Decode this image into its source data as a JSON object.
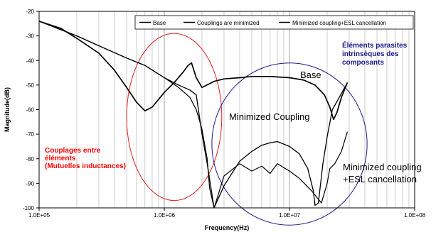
{
  "chart_data": {
    "type": "line",
    "x_scale": "log",
    "xlabel": "Frequency(Hz)",
    "ylabel": "Magnitude(dB)",
    "xlim": [
      100000,
      100000000
    ],
    "ylim": [
      -100,
      -20
    ],
    "x_ticks": [
      100000,
      1000000,
      10000000,
      100000000
    ],
    "x_tick_labels": [
      "1.0E+05",
      "1.0E+06",
      "1.0E+07",
      "1.0E+08"
    ],
    "y_ticks": [
      -100,
      -90,
      -80,
      -70,
      -60,
      -50,
      -40,
      -30,
      -20
    ],
    "y_tick_labels": [
      "-100",
      "-90",
      "-80",
      "-70",
      "-60",
      "-50",
      "-40",
      "-30",
      "-20"
    ],
    "grid": {
      "vertical_log_minor": true,
      "horizontal": false
    },
    "legend": {
      "placement": "top-right",
      "entries": [
        "Base",
        "Couplings are minimized",
        "Minimized coupling+ESL cancellation"
      ]
    },
    "series": [
      {
        "name": "Base",
        "color": "#000000",
        "x": [
          100000,
          150000,
          200000,
          300000,
          400000,
          500000,
          600000,
          700000,
          800000,
          1000000,
          1200000,
          1400000,
          1550000,
          1650000,
          1800000,
          2000000,
          2500000,
          3000000,
          4000000,
          5000000,
          7000000,
          10000000,
          13000000,
          16000000,
          19000000,
          21000000,
          22500000,
          24000000,
          26000000,
          29000000
        ],
        "y": [
          -24,
          -27,
          -31,
          -37,
          -44,
          -51,
          -57,
          -60.5,
          -59,
          -53,
          -49,
          -45,
          -42,
          -41,
          -47,
          -51,
          -48.5,
          -47.5,
          -47,
          -46.5,
          -46.5,
          -47,
          -48,
          -50,
          -54,
          -59,
          -64,
          -61,
          -55,
          -49
        ]
      },
      {
        "name": "Couplings are minimized",
        "color": "#000000",
        "x": [
          100000,
          200000,
          300000,
          500000,
          700000,
          1000000,
          1300000,
          1600000,
          1800000,
          2000000,
          2200000,
          2500000,
          3000000,
          4000000,
          5000000,
          6000000,
          7000000,
          8000000,
          10000000,
          12000000,
          14000000,
          15500000,
          16000000,
          17000000,
          18500000,
          20000000,
          22000000,
          25000000,
          29000000
        ],
        "y": [
          -24,
          -30,
          -34,
          -39,
          -42,
          -47,
          -50,
          -52,
          -54,
          -70,
          -82,
          -100,
          -91,
          -81,
          -77,
          -74.5,
          -73.5,
          -73,
          -75,
          -78,
          -84,
          -93,
          -99,
          -98,
          -82,
          -71,
          -60,
          -55,
          -49
        ]
      },
      {
        "name": "Minimized coupling+ESL cancellation",
        "color": "#000000",
        "x": [
          100000,
          200000,
          300000,
          500000,
          700000,
          1000000,
          1300000,
          1600000,
          1800000,
          2000000,
          2200000,
          2300000,
          2500000,
          3000000,
          4000000,
          5000000,
          6000000,
          7000000,
          8000000,
          10000000,
          12000000,
          15000000,
          18000000,
          20000000,
          21000000,
          23000000,
          26000000,
          29000000
        ],
        "y": [
          -24,
          -30,
          -34,
          -39,
          -42,
          -47,
          -51,
          -55,
          -60,
          -68,
          -80,
          -92,
          -100,
          -87,
          -82,
          -85,
          -83,
          -86,
          -82,
          -85,
          -88,
          -93,
          -98,
          -90,
          -84,
          -82,
          -77,
          -69
        ]
      }
    ],
    "annotations": [
      {
        "id": "base",
        "text": "Base",
        "color": "#000000"
      },
      {
        "id": "minimized",
        "text": "Minimized Coupling",
        "color": "#000000"
      },
      {
        "id": "esl",
        "lines": [
          "Minimized coupling",
          "+ESL cancellation"
        ],
        "color": "#000000"
      },
      {
        "id": "couplages",
        "lines": [
          "Couplages entre",
          "éléments",
          "(Mutuelles inductances)"
        ],
        "color": "#ff0000"
      },
      {
        "id": "elements",
        "lines": [
          "Éléments parasites",
          "intrinsèques des",
          "composants"
        ],
        "color": "#1a1a8c"
      }
    ],
    "highlight_ellipses": [
      {
        "color": "#e02020",
        "x_center": 1200000,
        "y_center": -63,
        "x_rx_decades": 0.38,
        "y_ry_db": 34
      },
      {
        "color": "#1a1a8c",
        "x_center": 10000000,
        "y_center": -74,
        "x_rx_decades": 0.62,
        "y_ry_db": 33
      }
    ]
  }
}
